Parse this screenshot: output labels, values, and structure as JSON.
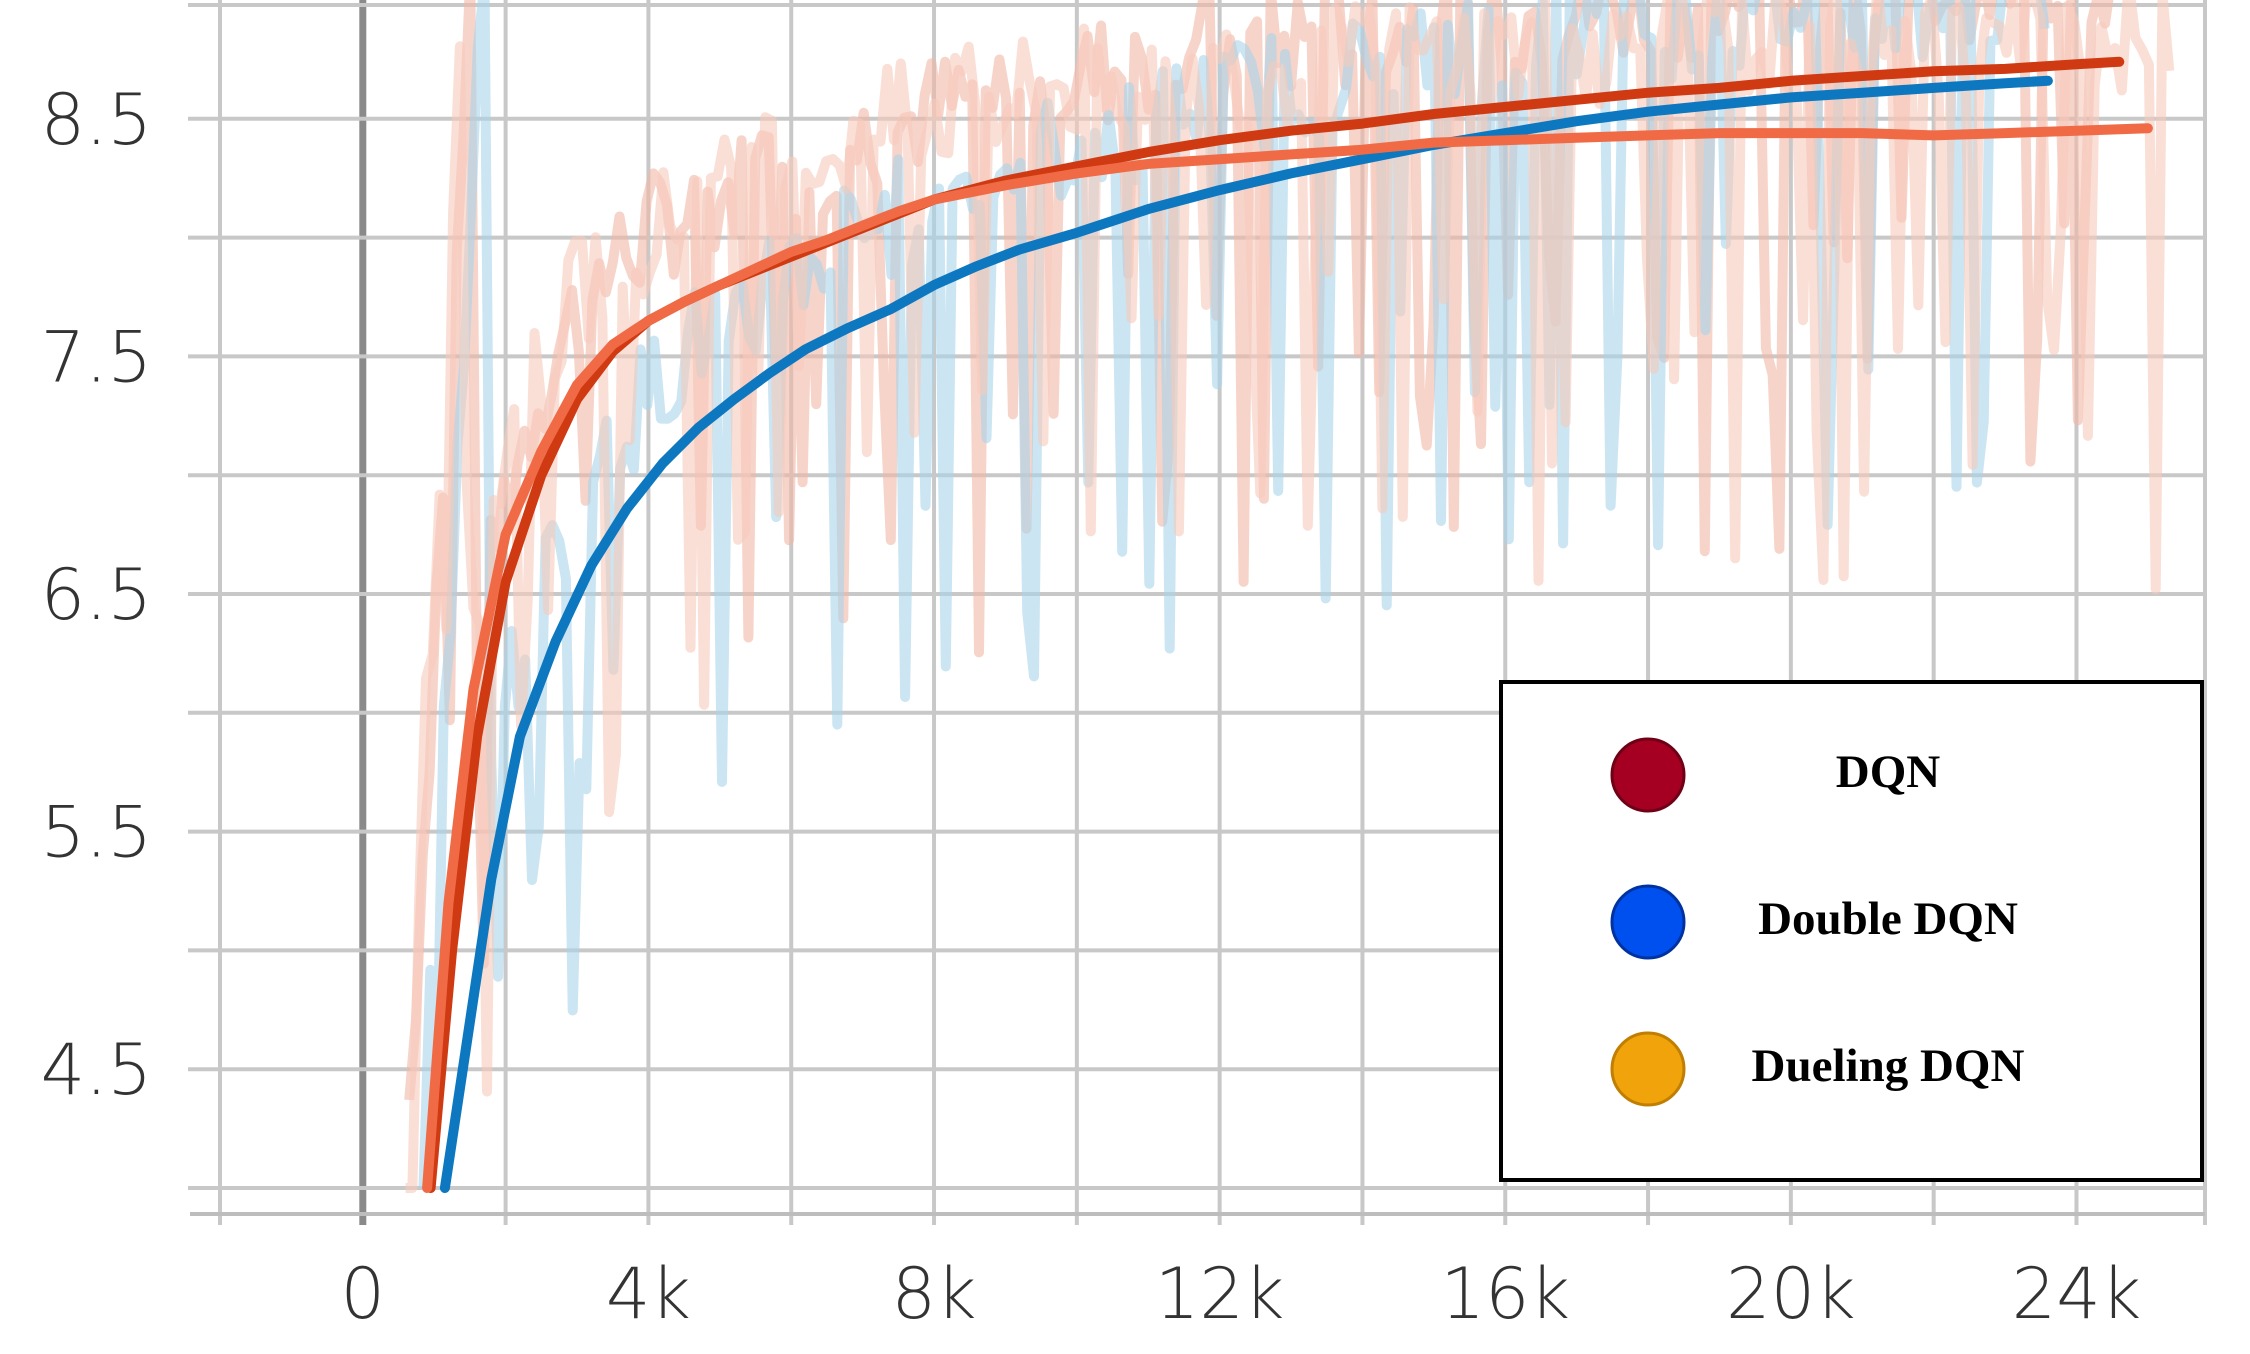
{
  "chart_data": {
    "type": "line",
    "title": "",
    "xlabel": "",
    "ylabel": "",
    "xlim": [
      -2000,
      25800
    ],
    "ylim": [
      4.0,
      9.0
    ],
    "x_ticks": [
      0,
      4000,
      8000,
      12000,
      16000,
      20000,
      24000
    ],
    "x_tick_labels": [
      "0",
      "4k",
      "8k",
      "12k",
      "16k",
      "20k",
      "24k"
    ],
    "y_ticks": [
      4.5,
      5.5,
      6.5,
      7.5,
      8.5
    ],
    "y_tick_labels": [
      "4.5",
      "5.5",
      "6.5",
      "7.5",
      "8.5"
    ],
    "grid": true,
    "legend_position": "bottom-right",
    "series": [
      {
        "name": "DQN",
        "legend_color": "#a50021",
        "line_color": "#d03a12",
        "raw_color": "#f2b7a6",
        "x": [
          950,
          1250,
          1600,
          2000,
          2500,
          3000,
          3500,
          4000,
          4500,
          5000,
          5500,
          6000,
          6500,
          7000,
          7500,
          8000,
          8500,
          9000,
          9500,
          10000,
          11000,
          12000,
          13000,
          14000,
          15000,
          16000,
          17000,
          18000,
          19000,
          20000,
          21000,
          22000,
          23000,
          24000,
          24600
        ],
        "y": [
          4.0,
          5.0,
          5.9,
          6.55,
          7.0,
          7.32,
          7.52,
          7.65,
          7.73,
          7.8,
          7.86,
          7.92,
          7.98,
          8.04,
          8.1,
          8.16,
          8.2,
          8.24,
          8.27,
          8.3,
          8.36,
          8.41,
          8.45,
          8.48,
          8.52,
          8.55,
          8.58,
          8.61,
          8.63,
          8.66,
          8.68,
          8.7,
          8.71,
          8.73,
          8.74
        ]
      },
      {
        "name": "Double DQN",
        "legend_color": "#0050ef",
        "line_color": "#0d78c0",
        "raw_color": "#a8d4ea",
        "x": [
          1150,
          1400,
          1800,
          2200,
          2700,
          3200,
          3700,
          4200,
          4700,
          5200,
          5700,
          6200,
          6800,
          7400,
          8000,
          8600,
          9200,
          10000,
          11000,
          12000,
          13000,
          14000,
          15000,
          16000,
          17000,
          18000,
          19000,
          20000,
          21000,
          22000,
          23000,
          23600
        ],
        "y": [
          4.0,
          4.5,
          5.3,
          5.9,
          6.3,
          6.62,
          6.86,
          7.05,
          7.2,
          7.32,
          7.43,
          7.53,
          7.62,
          7.7,
          7.8,
          7.88,
          7.95,
          8.02,
          8.12,
          8.2,
          8.27,
          8.33,
          8.39,
          8.44,
          8.49,
          8.53,
          8.56,
          8.59,
          8.61,
          8.63,
          8.65,
          8.66
        ]
      },
      {
        "name": "Dueling DQN",
        "legend_color": "#f0a30a",
        "line_color": "#f06b45",
        "raw_color": "#f7c9bb",
        "x": [
          900,
          1200,
          1550,
          2000,
          2500,
          3000,
          3500,
          4000,
          4500,
          5000,
          5500,
          6000,
          6500,
          7000,
          7500,
          8000,
          8500,
          9000,
          10000,
          11000,
          12000,
          13000,
          14000,
          15000,
          16000,
          17000,
          18000,
          19000,
          20000,
          21000,
          22000,
          23000,
          24000,
          25000
        ],
        "y": [
          4.0,
          5.2,
          6.1,
          6.75,
          7.1,
          7.38,
          7.55,
          7.65,
          7.73,
          7.8,
          7.87,
          7.94,
          7.99,
          8.05,
          8.11,
          8.16,
          8.19,
          8.22,
          8.27,
          8.31,
          8.33,
          8.35,
          8.37,
          8.4,
          8.41,
          8.42,
          8.43,
          8.44,
          8.44,
          8.44,
          8.43,
          8.44,
          8.45,
          8.46
        ]
      }
    ]
  }
}
